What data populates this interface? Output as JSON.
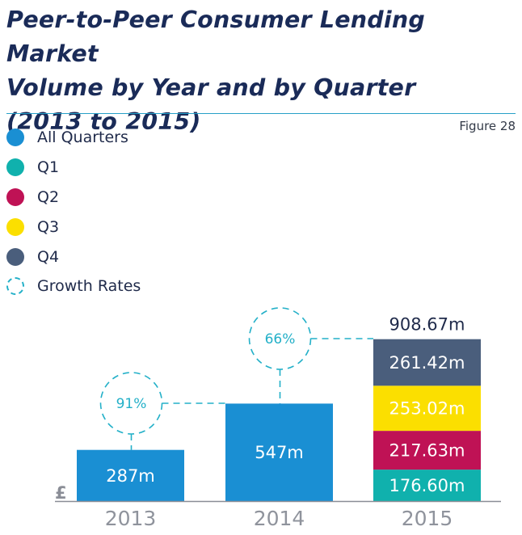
{
  "title_lines": [
    "Peer-to-Peer Consumer Lending Market",
    "Volume by Year and by Quarter",
    "(2013 to 2015)"
  ],
  "figure_label": "Figure 28",
  "colors": {
    "all_quarters": "#1a8fd3",
    "q1": "#10b1ad",
    "q2": "#bf1255",
    "q3": "#fbdf00",
    "q4": "#4a5e7c",
    "growth": "#23b0c8",
    "title": "#1a2b58",
    "axis": "#8a8d96"
  },
  "legend": [
    {
      "label": "All Quarters",
      "color": "#1a8fd3",
      "style": "solid"
    },
    {
      "label": "Q1",
      "color": "#10b1ad",
      "style": "solid"
    },
    {
      "label": "Q2",
      "color": "#bf1255",
      "style": "solid"
    },
    {
      "label": "Q3",
      "color": "#fbdf00",
      "style": "solid"
    },
    {
      "label": "Q4",
      "color": "#4a5e7c",
      "style": "solid"
    },
    {
      "label": "Growth Rates",
      "color": "#23b0c8",
      "style": "dashed"
    }
  ],
  "chart_data": {
    "type": "bar",
    "categories": [
      "2013",
      "2014",
      "2015"
    ],
    "axis_symbol": "£",
    "totals": [
      287,
      547,
      908.67
    ],
    "total_labels": [
      "287m",
      "547m",
      "908.67m"
    ],
    "series": [
      {
        "name": "All Quarters",
        "values": [
          287,
          547,
          null
        ],
        "labels": [
          "287m",
          "547m",
          ""
        ]
      },
      {
        "name": "Q1",
        "values": [
          null,
          null,
          176.6
        ],
        "labels": [
          "",
          "",
          "176.60m"
        ]
      },
      {
        "name": "Q2",
        "values": [
          null,
          null,
          217.63
        ],
        "labels": [
          "",
          "",
          "217.63m"
        ]
      },
      {
        "name": "Q3",
        "values": [
          null,
          null,
          253.02
        ],
        "labels": [
          "",
          "",
          "253.02m"
        ]
      },
      {
        "name": "Q4",
        "values": [
          null,
          null,
          261.42
        ],
        "labels": [
          "",
          "",
          "261.42m"
        ]
      }
    ],
    "growth_rates": [
      {
        "label": "91%",
        "from": "2013",
        "to": "2014"
      },
      {
        "label": "66%",
        "from": "2014",
        "to": "2015"
      }
    ],
    "legend_position": "top-left",
    "grid": false
  }
}
